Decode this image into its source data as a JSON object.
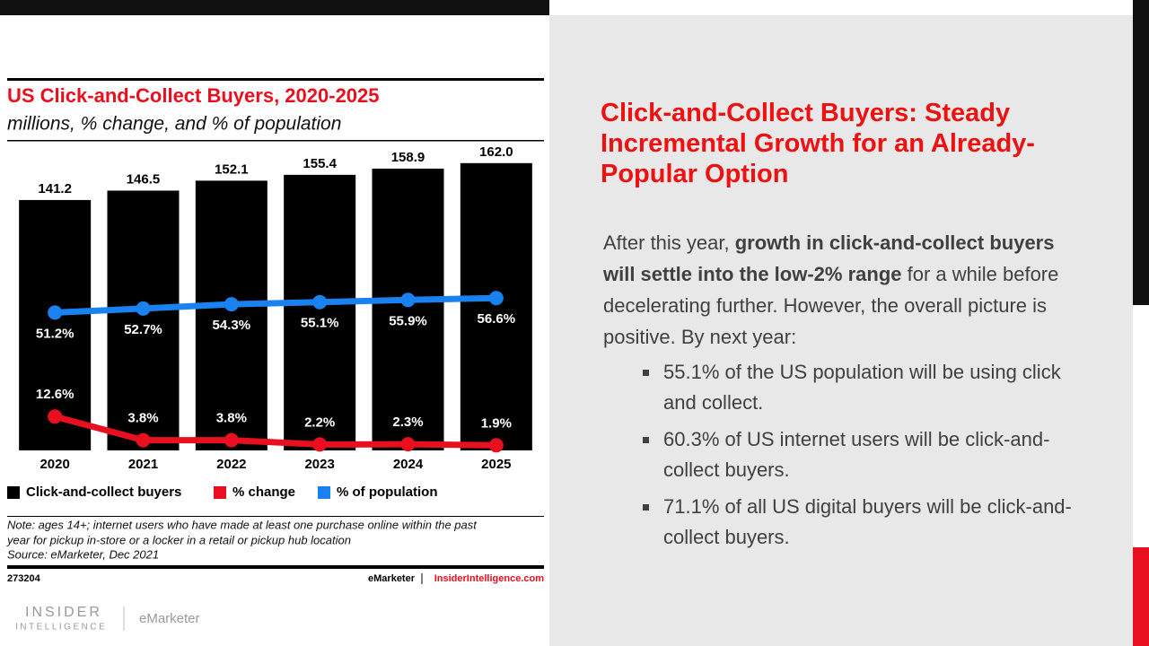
{
  "chart_data": {
    "type": "bar",
    "title": "US Click-and-Collect Buyers, 2020-2025",
    "subtitle": "millions, % change, and % of population",
    "categories": [
      "2020",
      "2021",
      "2022",
      "2023",
      "2024",
      "2025"
    ],
    "ylim": [
      0,
      170
    ],
    "y2lim": [
      0,
      112
    ],
    "series": [
      {
        "name": "Click-and-collect buyers",
        "type": "bar",
        "color": "#000000",
        "values": [
          141.2,
          146.5,
          152.1,
          155.4,
          158.9,
          162
        ],
        "value_labels": [
          "141.2",
          "146.5",
          "152.1",
          "155.4",
          "158.9",
          "162.0"
        ]
      },
      {
        "name": "% change",
        "type": "line",
        "axis": "y2",
        "color": "#e8101f",
        "values": [
          12.6,
          3.8,
          3.8,
          2.2,
          2.3,
          1.9
        ],
        "value_labels": [
          "12.6%",
          "3.8%",
          "3.8%",
          "2.2%",
          "2.3%",
          "1.9%"
        ]
      },
      {
        "name": "% of population",
        "type": "line",
        "axis": "y2",
        "color": "#1a82f0",
        "values": [
          51.2,
          52.7,
          54.3,
          55.1,
          55.9,
          56.6
        ],
        "value_labels": [
          "51.2%",
          "52.7%",
          "54.3%",
          "55.1%",
          "55.9%",
          "56.6%"
        ]
      }
    ],
    "note": [
      "Note: ages 14+; internet users who have made at least one purchase online within the past",
      "year for pickup in-store or a locker in a retail or pickup hub location",
      "Source: eMarketer, Dec 2021"
    ],
    "chart_id": "273204",
    "credit": "eMarketer",
    "site": "InsiderIntelligence.com"
  },
  "logos": {
    "insider": "INSIDER",
    "intelligence": "INTELLIGENCE",
    "emarketer": "eMarketer"
  },
  "slide": {
    "heading": "Click-and-Collect Buyers: Steady Incremental Growth for an Already-Popular Option",
    "paragraph": [
      {
        "text": "After this year, ",
        "bold": false
      },
      {
        "text": "growth in click-and-collect buyers will settle into the low-2% range",
        "bold": true
      },
      {
        "text": " for a while before decelerating further. However, the overall picture is positive. By next year:",
        "bold": false
      }
    ],
    "bullets": [
      "55.1% of the US population will be using click and collect.",
      "60.3% of US internet users will be click-and-collect buyers.",
      "71.1% of all US digital buyers will be click-and-collect buyers."
    ]
  }
}
